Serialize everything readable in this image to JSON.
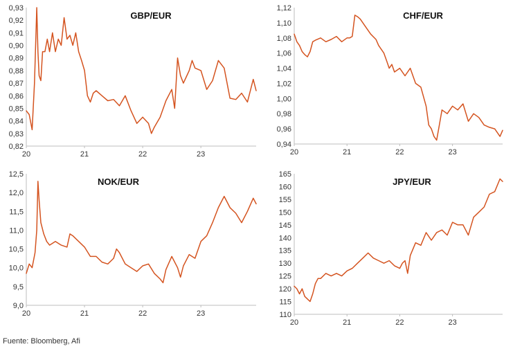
{
  "source_note": "Fuente: Bloomberg, Afi",
  "line_color": "#d4531f",
  "chart_data": [
    {
      "type": "line",
      "title": "GBP/EUR",
      "xlabel": "",
      "ylabel": "",
      "x_range": [
        2020.0,
        2023.95
      ],
      "ylim": [
        0.82,
        0.93
      ],
      "y_ticks": [
        "0,82",
        "0,83",
        "0,84",
        "0,85",
        "0,86",
        "0,87",
        "0,88",
        "0,89",
        "0,90",
        "0,91",
        "0,92",
        "0,93"
      ],
      "x_ticks": [
        {
          "x": 2020,
          "label": "20"
        },
        {
          "x": 2021,
          "label": "21"
        },
        {
          "x": 2022,
          "label": "22"
        },
        {
          "x": 2023,
          "label": "23"
        }
      ],
      "grid": false,
      "legend": "none",
      "x": [
        2020.0,
        2020.05,
        2020.1,
        2020.14,
        2020.18,
        2020.2,
        2020.22,
        2020.25,
        2020.28,
        2020.32,
        2020.36,
        2020.4,
        2020.45,
        2020.5,
        2020.55,
        2020.6,
        2020.65,
        2020.7,
        2020.75,
        2020.8,
        2020.85,
        2020.9,
        2020.95,
        2021.0,
        2021.05,
        2021.1,
        2021.15,
        2021.2,
        2021.3,
        2021.4,
        2021.5,
        2021.6,
        2021.7,
        2021.8,
        2021.9,
        2022.0,
        2022.1,
        2022.15,
        2022.2,
        2022.3,
        2022.4,
        2022.5,
        2022.55,
        2022.6,
        2022.65,
        2022.7,
        2022.75,
        2022.8,
        2022.85,
        2022.9,
        2023.0,
        2023.1,
        2023.2,
        2023.3,
        2023.4,
        2023.5,
        2023.6,
        2023.7,
        2023.8,
        2023.9,
        2023.95
      ],
      "values": [
        0.848,
        0.845,
        0.833,
        0.87,
        0.93,
        0.895,
        0.876,
        0.872,
        0.895,
        0.895,
        0.905,
        0.895,
        0.91,
        0.895,
        0.905,
        0.9,
        0.922,
        0.905,
        0.908,
        0.9,
        0.91,
        0.895,
        0.888,
        0.88,
        0.86,
        0.855,
        0.862,
        0.864,
        0.86,
        0.856,
        0.857,
        0.852,
        0.86,
        0.848,
        0.838,
        0.843,
        0.838,
        0.83,
        0.835,
        0.843,
        0.856,
        0.865,
        0.85,
        0.89,
        0.876,
        0.87,
        0.875,
        0.88,
        0.888,
        0.882,
        0.88,
        0.865,
        0.872,
        0.888,
        0.882,
        0.858,
        0.857,
        0.862,
        0.855,
        0.873,
        0.864
      ]
    },
    {
      "type": "line",
      "title": "CHF/EUR",
      "xlabel": "",
      "ylabel": "",
      "x_range": [
        2020.0,
        2023.95
      ],
      "ylim": [
        0.94,
        1.12
      ],
      "y_ticks": [
        "0,94",
        "0,96",
        "0,98",
        "1,00",
        "1,02",
        "1,04",
        "1,06",
        "1,08",
        "1,10",
        "1,12"
      ],
      "x_ticks": [
        {
          "x": 2020,
          "label": "20"
        },
        {
          "x": 2021,
          "label": "21"
        },
        {
          "x": 2022,
          "label": "22"
        },
        {
          "x": 2023,
          "label": "23"
        }
      ],
      "grid": false,
      "legend": "none",
      "x": [
        2020.0,
        2020.05,
        2020.1,
        2020.15,
        2020.2,
        2020.25,
        2020.3,
        2020.35,
        2020.4,
        2020.5,
        2020.6,
        2020.7,
        2020.8,
        2020.9,
        2021.0,
        2021.05,
        2021.1,
        2021.15,
        2021.2,
        2021.25,
        2021.35,
        2021.45,
        2021.55,
        2021.6,
        2021.7,
        2021.75,
        2021.8,
        2021.85,
        2021.9,
        2022.0,
        2022.1,
        2022.2,
        2022.3,
        2022.4,
        2022.5,
        2022.55,
        2022.6,
        2022.65,
        2022.7,
        2022.75,
        2022.8,
        2022.9,
        2023.0,
        2023.1,
        2023.2,
        2023.3,
        2023.4,
        2023.5,
        2023.6,
        2023.7,
        2023.8,
        2023.9,
        2023.95
      ],
      "values": [
        1.085,
        1.075,
        1.07,
        1.062,
        1.058,
        1.055,
        1.062,
        1.075,
        1.077,
        1.08,
        1.075,
        1.078,
        1.082,
        1.075,
        1.08,
        1.08,
        1.082,
        1.11,
        1.108,
        1.105,
        1.095,
        1.085,
        1.078,
        1.07,
        1.06,
        1.05,
        1.04,
        1.045,
        1.035,
        1.04,
        1.03,
        1.04,
        1.02,
        1.015,
        0.99,
        0.965,
        0.96,
        0.95,
        0.945,
        0.965,
        0.985,
        0.98,
        0.99,
        0.985,
        0.993,
        0.97,
        0.98,
        0.975,
        0.965,
        0.962,
        0.96,
        0.95,
        0.958
      ]
    },
    {
      "type": "line",
      "title": "NOK/EUR",
      "xlabel": "",
      "ylabel": "",
      "x_range": [
        2020.0,
        2023.95
      ],
      "ylim": [
        9.0,
        12.5
      ],
      "y_ticks": [
        "9,0",
        "9,5",
        "10,0",
        "10,5",
        "11,0",
        "11,5",
        "12,0",
        "12,5"
      ],
      "x_ticks": [
        {
          "x": 2020,
          "label": "20"
        },
        {
          "x": 2021,
          "label": "21"
        },
        {
          "x": 2022,
          "label": "22"
        },
        {
          "x": 2023,
          "label": "23"
        }
      ],
      "grid": false,
      "legend": "none",
      "x": [
        2020.0,
        2020.05,
        2020.1,
        2020.15,
        2020.18,
        2020.2,
        2020.22,
        2020.25,
        2020.3,
        2020.35,
        2020.4,
        2020.5,
        2020.6,
        2020.7,
        2020.75,
        2020.8,
        2020.9,
        2021.0,
        2021.1,
        2021.2,
        2021.3,
        2021.4,
        2021.5,
        2021.55,
        2021.6,
        2021.7,
        2021.8,
        2021.9,
        2022.0,
        2022.1,
        2022.2,
        2022.3,
        2022.35,
        2022.4,
        2022.5,
        2022.6,
        2022.65,
        2022.7,
        2022.8,
        2022.9,
        2023.0,
        2023.1,
        2023.2,
        2023.3,
        2023.4,
        2023.5,
        2023.6,
        2023.7,
        2023.8,
        2023.9,
        2023.95
      ],
      "values": [
        9.85,
        10.1,
        10.0,
        10.4,
        11.0,
        12.3,
        11.8,
        11.2,
        10.9,
        10.7,
        10.6,
        10.7,
        10.6,
        10.55,
        10.9,
        10.85,
        10.7,
        10.55,
        10.3,
        10.3,
        10.15,
        10.1,
        10.25,
        10.5,
        10.4,
        10.1,
        10.0,
        9.9,
        10.05,
        10.1,
        9.85,
        9.7,
        9.6,
        9.95,
        10.3,
        10.0,
        9.75,
        10.05,
        10.35,
        10.25,
        10.7,
        10.85,
        11.2,
        11.6,
        11.9,
        11.6,
        11.45,
        11.2,
        11.5,
        11.85,
        11.7
      ]
    },
    {
      "type": "line",
      "title": "JPY/EUR",
      "xlabel": "",
      "ylabel": "",
      "x_range": [
        2020.0,
        2023.95
      ],
      "ylim": [
        110,
        165
      ],
      "y_ticks": [
        "110",
        "115",
        "120",
        "125",
        "130",
        "135",
        "140",
        "145",
        "150",
        "155",
        "160",
        "165"
      ],
      "x_ticks": [
        {
          "x": 2020,
          "label": "20"
        },
        {
          "x": 2021,
          "label": "21"
        },
        {
          "x": 2022,
          "label": "22"
        },
        {
          "x": 2023,
          "label": "23"
        }
      ],
      "grid": false,
      "legend": "none",
      "x": [
        2020.0,
        2020.05,
        2020.1,
        2020.15,
        2020.2,
        2020.25,
        2020.3,
        2020.35,
        2020.4,
        2020.45,
        2020.5,
        2020.6,
        2020.7,
        2020.8,
        2020.9,
        2021.0,
        2021.1,
        2021.2,
        2021.3,
        2021.4,
        2021.5,
        2021.6,
        2021.7,
        2021.8,
        2021.9,
        2022.0,
        2022.05,
        2022.1,
        2022.15,
        2022.2,
        2022.3,
        2022.4,
        2022.5,
        2022.6,
        2022.7,
        2022.8,
        2022.9,
        2023.0,
        2023.1,
        2023.2,
        2023.3,
        2023.4,
        2023.5,
        2023.6,
        2023.7,
        2023.8,
        2023.9,
        2023.95
      ],
      "values": [
        121,
        120,
        118,
        120,
        117,
        116,
        115,
        118,
        122,
        124,
        124,
        126,
        125,
        126,
        125,
        127,
        128,
        130,
        132,
        134,
        132,
        131,
        130,
        131,
        129,
        128,
        130,
        131,
        126,
        133,
        138,
        137,
        142,
        139,
        142,
        143,
        141,
        146,
        145,
        145,
        141,
        148,
        150,
        152,
        157,
        158,
        163,
        162
      ]
    }
  ]
}
